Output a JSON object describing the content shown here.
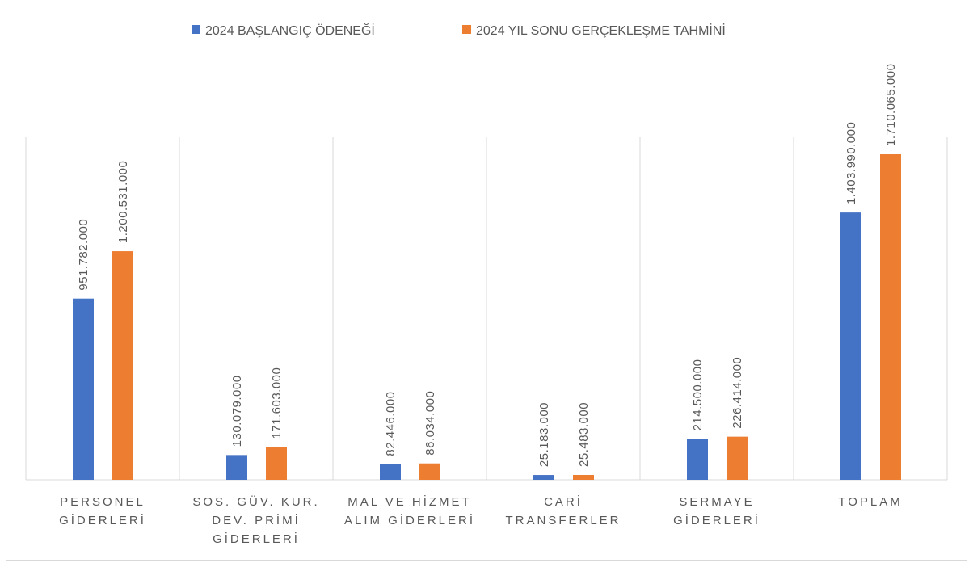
{
  "chart_data": {
    "type": "bar",
    "categories": [
      "PERSONEL GİDERLERİ",
      "SOS. GÜV. KUR. DEV. PRİMİ GİDERLERİ",
      "MAL VE HİZMET ALIM GİDERLERİ",
      "CARİ TRANSFERLER",
      "SERMAYE GİDERLERİ",
      "TOPLAM"
    ],
    "series": [
      {
        "name": "2024 BAŞLANGIÇ ÖDENEĞİ",
        "color": "#4472c4",
        "values": [
          951782000,
          130079000,
          82446000,
          25183000,
          214500000,
          1403990000
        ],
        "value_labels": [
          "951.782.000",
          "130.079.000",
          "82.446.000",
          "25.183.000",
          "214.500.000",
          "1.403.990.000"
        ]
      },
      {
        "name": "2024 YIL SONU GERÇEKLEŞME TAHMİNİ",
        "color": "#ed7d31",
        "values": [
          1200531000,
          171603000,
          86034000,
          25483000,
          226414000,
          1710065000
        ],
        "value_labels": [
          "1.200.531.000",
          "171.603.000",
          "86.034.000",
          "25.483.000",
          "226.414.000",
          "1.710.065.000"
        ]
      }
    ],
    "legend": "top"
  }
}
